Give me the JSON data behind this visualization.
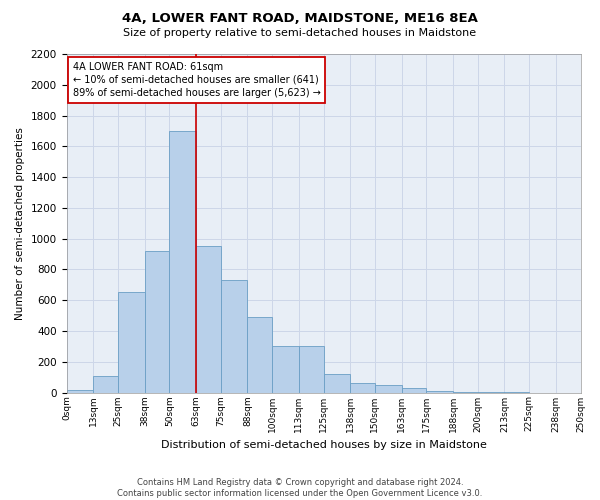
{
  "title": "4A, LOWER FANT ROAD, MAIDSTONE, ME16 8EA",
  "subtitle": "Size of property relative to semi-detached houses in Maidstone",
  "xlabel": "Distribution of semi-detached houses by size in Maidstone",
  "ylabel": "Number of semi-detached properties",
  "footer_line1": "Contains HM Land Registry data © Crown copyright and database right 2024.",
  "footer_line2": "Contains public sector information licensed under the Open Government Licence v3.0.",
  "annotation_title": "4A LOWER FANT ROAD: 61sqm",
  "annotation_line1": "← 10% of semi-detached houses are smaller (641)",
  "annotation_line2": "89% of semi-detached houses are larger (5,623) →",
  "bar_color": "#b8d0ea",
  "bar_edge_color": "#6a9ec5",
  "vline_color": "#cc0000",
  "vline_x": 63,
  "annotation_box_color": "#ffffff",
  "annotation_box_edge": "#cc0000",
  "bin_edges": [
    0,
    13,
    25,
    38,
    50,
    63,
    75,
    88,
    100,
    113,
    125,
    138,
    150,
    163,
    175,
    188,
    200,
    213,
    225,
    238,
    250
  ],
  "bin_labels": [
    "0sqm",
    "13sqm",
    "25sqm",
    "38sqm",
    "50sqm",
    "63sqm",
    "75sqm",
    "88sqm",
    "100sqm",
    "113sqm",
    "125sqm",
    "138sqm",
    "150sqm",
    "163sqm",
    "175sqm",
    "188sqm",
    "200sqm",
    "213sqm",
    "225sqm",
    "238sqm",
    "250sqm"
  ],
  "values": [
    15,
    110,
    650,
    920,
    1700,
    950,
    730,
    490,
    300,
    300,
    120,
    65,
    50,
    30,
    12,
    5,
    2,
    1,
    0,
    0
  ],
  "ylim": [
    0,
    2200
  ],
  "yticks": [
    0,
    200,
    400,
    600,
    800,
    1000,
    1200,
    1400,
    1600,
    1800,
    2000,
    2200
  ],
  "grid_color": "#cdd6e8",
  "background_color": "#e8eef6"
}
